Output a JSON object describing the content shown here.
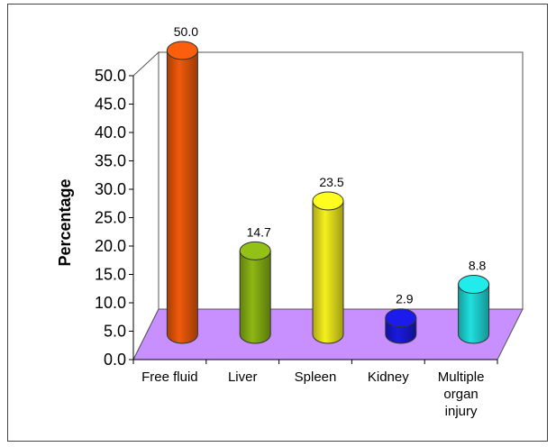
{
  "chart_data": {
    "type": "bar",
    "title": "",
    "xlabel": "",
    "ylabel": "Percentage",
    "ylim": [
      0,
      50
    ],
    "y_ticks": [
      "0.0",
      "5.0",
      "10.0",
      "15.0",
      "20.0",
      "25.0",
      "30.0",
      "35.0",
      "40.0",
      "45.0",
      "50.0"
    ],
    "grid": false,
    "legend": "none",
    "style": "3d-cylinder",
    "categories": [
      [
        "Free fluid"
      ],
      [
        "Liver"
      ],
      [
        "Spleen"
      ],
      [
        "Kidney"
      ],
      [
        "Multiple",
        "organ",
        "injury"
      ]
    ],
    "values": [
      50.0,
      14.7,
      23.5,
      2.9,
      8.8
    ],
    "value_labels": [
      "50.0",
      "14.7",
      "23.5",
      "2.9",
      "8.8"
    ],
    "colors": [
      "#f05a0a",
      "#8cb814",
      "#f5f01e",
      "#1a1ae0",
      "#20e0e0"
    ],
    "floor_color": "#c890ff"
  }
}
